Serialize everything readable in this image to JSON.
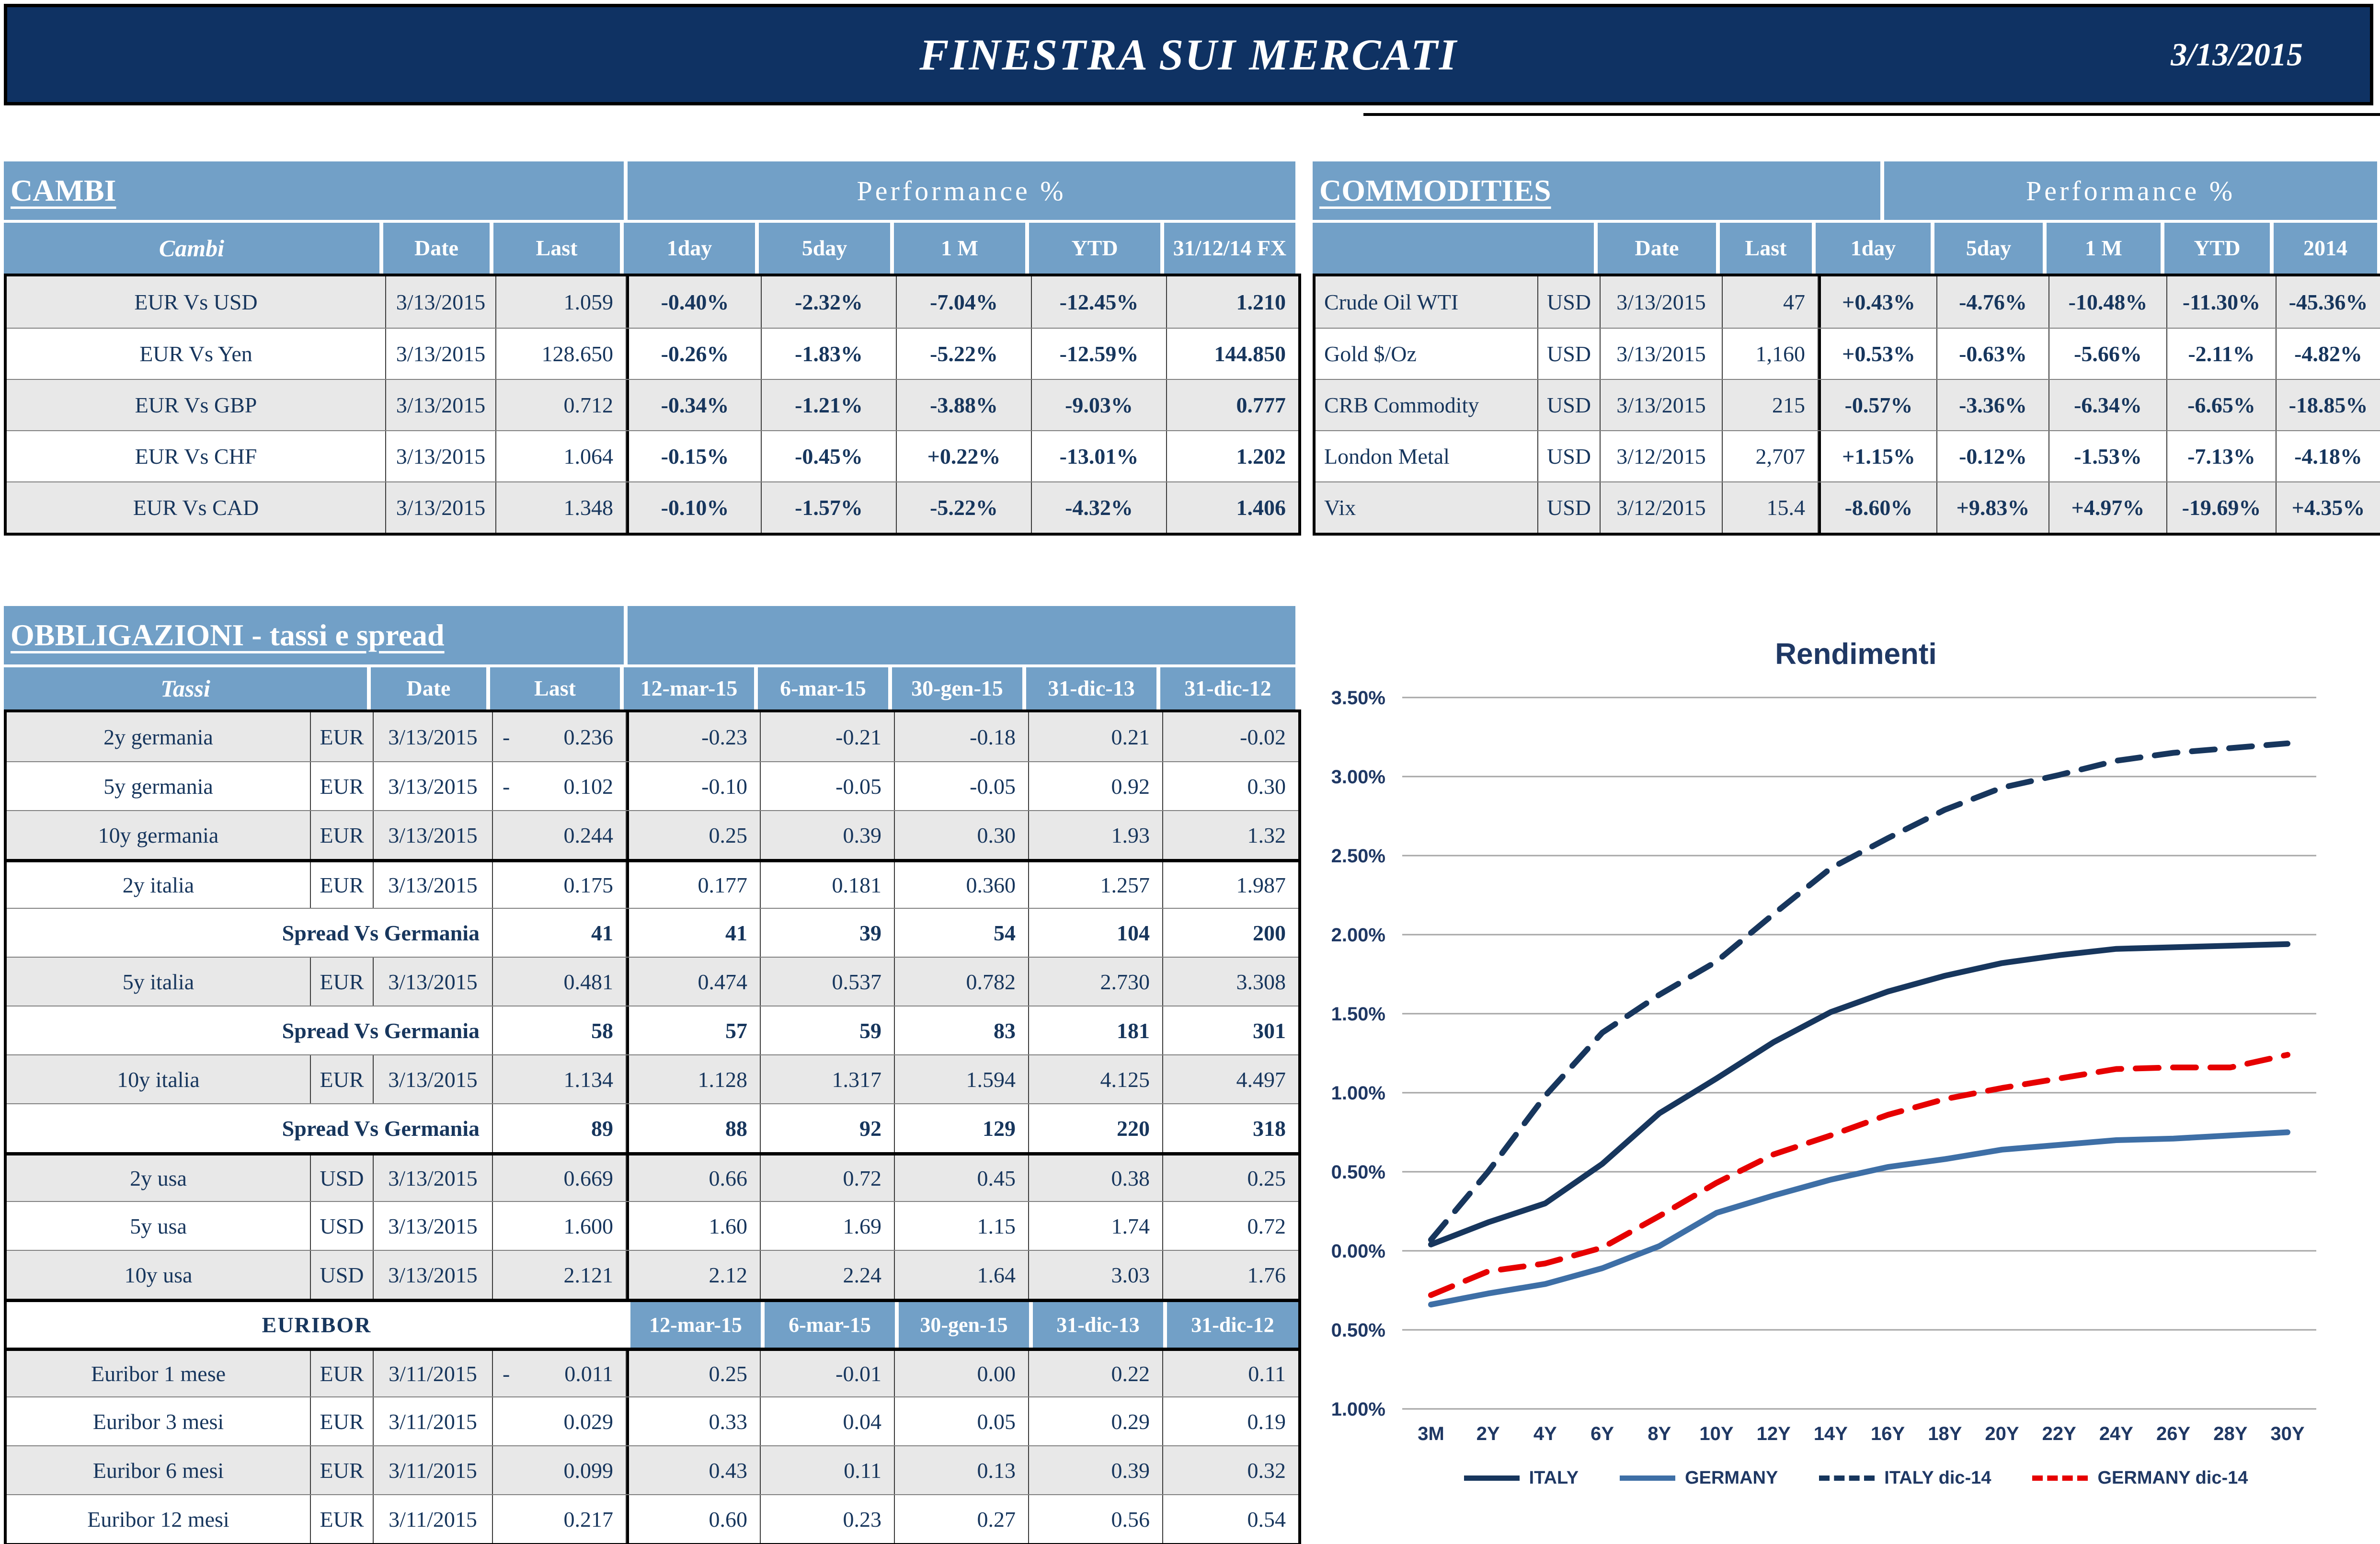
{
  "header": {
    "title": "FINESTRA SUI MERCATI",
    "date": "3/13/2015"
  },
  "cambi": {
    "title": "CAMBI",
    "perf_header": "Performance  %",
    "columns": {
      "name": "Cambi",
      "date": "Date",
      "last": "Last",
      "d1": "1day",
      "d5": "5day",
      "m1": "1 M",
      "ytd": "YTD",
      "fx": "31/12/14 FX"
    },
    "rows": [
      {
        "name": "EUR Vs USD",
        "date": "3/13/2015",
        "last": "1.059",
        "d1": "-0.40%",
        "s1": "neg",
        "d5": "-2.32%",
        "s5": "neg",
        "m1": "-7.04%",
        "sm": "neg",
        "ytd": "-12.45%",
        "sy": "neg",
        "fx": "1.210"
      },
      {
        "name": "EUR Vs Yen",
        "date": "3/13/2015",
        "last": "128.650",
        "d1": "-0.26%",
        "s1": "neg",
        "d5": "-1.83%",
        "s5": "neg",
        "m1": "-5.22%",
        "sm": "neg",
        "ytd": "-12.59%",
        "sy": "neg",
        "fx": "144.850"
      },
      {
        "name": "EUR Vs GBP",
        "date": "3/13/2015",
        "last": "0.712",
        "d1": "-0.34%",
        "s1": "neg",
        "d5": "-1.21%",
        "s5": "neg",
        "m1": "-3.88%",
        "sm": "neg",
        "ytd": "-9.03%",
        "sy": "neg",
        "fx": "0.777"
      },
      {
        "name": "EUR Vs CHF",
        "date": "3/13/2015",
        "last": "1.064",
        "d1": "-0.15%",
        "s1": "neg",
        "d5": "-0.45%",
        "s5": "neg",
        "m1": "+0.22%",
        "sm": "pos",
        "ytd": "-13.01%",
        "sy": "neg",
        "fx": "1.202"
      },
      {
        "name": "EUR Vs CAD",
        "date": "3/13/2015",
        "last": "1.348",
        "d1": "-0.10%",
        "s1": "neg",
        "d5": "-1.57%",
        "s5": "neg",
        "m1": "-5.22%",
        "sm": "neg",
        "ytd": "-4.32%",
        "sy": "neg",
        "fx": "1.406"
      }
    ]
  },
  "commodities": {
    "title": "COMMODITIES",
    "perf_header": "Performance  %",
    "columns": {
      "date": "Date",
      "last": "Last",
      "d1": "1day",
      "d5": "5day",
      "m1": "1 M",
      "ytd": "YTD",
      "y2014": "2014"
    },
    "rows": [
      {
        "name": "Crude Oil WTI",
        "ccy": "USD",
        "date": "3/13/2015",
        "last": "47",
        "d1": "+0.43%",
        "s1": "pos",
        "d5": "-4.76%",
        "s5": "neg",
        "m1": "-10.48%",
        "sm": "neg",
        "ytd": "-11.30%",
        "sy": "neg",
        "y2014": "-45.36%",
        "s14": "neg"
      },
      {
        "name": "Gold $/Oz",
        "ccy": "USD",
        "date": "3/13/2015",
        "last": "1,160",
        "d1": "+0.53%",
        "s1": "pos",
        "d5": "-0.63%",
        "s5": "neg",
        "m1": "-5.66%",
        "sm": "neg",
        "ytd": "-2.11%",
        "sy": "neg",
        "y2014": "-4.82%",
        "s14": "neg"
      },
      {
        "name": "CRB Commodity",
        "ccy": "USD",
        "date": "3/13/2015",
        "last": "215",
        "d1": "-0.57%",
        "s1": "neg",
        "d5": "-3.36%",
        "s5": "neg",
        "m1": "-6.34%",
        "sm": "neg",
        "ytd": "-6.65%",
        "sy": "neg",
        "y2014": "-18.85%",
        "s14": "neg"
      },
      {
        "name": "London Metal",
        "ccy": "USD",
        "date": "3/12/2015",
        "last": "2,707",
        "d1": "+1.15%",
        "s1": "pos",
        "d5": "-0.12%",
        "s5": "neg",
        "m1": "-1.53%",
        "sm": "neg",
        "ytd": "-7.13%",
        "sy": "neg",
        "y2014": "-4.18%",
        "s14": "neg"
      },
      {
        "name": "Vix",
        "ccy": "USD",
        "date": "3/12/2015",
        "last": "15.4",
        "d1": "-8.60%",
        "s1": "neg",
        "d5": "+9.83%",
        "s5": "pos",
        "m1": "+4.97%",
        "sm": "pos",
        "ytd": "-19.69%",
        "sy": "neg",
        "y2014": "+4.35%",
        "s14": "pos"
      }
    ]
  },
  "obblig": {
    "title": "OBBLIGAZIONI - tassi e spread",
    "columns": {
      "name": "Tassi",
      "date": "Date",
      "last": "Last",
      "c1": "12-mar-15",
      "c2": "6-mar-15",
      "c3": "30-gen-15",
      "c4": "31-dic-13",
      "c5": "31-dic-12"
    },
    "section_label": "EURIBOR",
    "rows": [
      {
        "name": "2y germania",
        "ccy": "EUR",
        "date": "3/13/2015",
        "minus": "-",
        "last": "0.236",
        "v1": "-0.23",
        "v2": "-0.21",
        "v3": "-0.18",
        "v4": "0.21",
        "v5": "-0.02"
      },
      {
        "name": "5y germania",
        "ccy": "EUR",
        "date": "3/13/2015",
        "minus": "-",
        "last": "0.102",
        "v1": "-0.10",
        "v2": "-0.05",
        "v3": "-0.05",
        "v4": "0.92",
        "v5": "0.30"
      },
      {
        "name": "10y germania",
        "ccy": "EUR",
        "date": "3/13/2015",
        "minus": "",
        "last": "0.244",
        "v1": "0.25",
        "v2": "0.39",
        "v3": "0.30",
        "v4": "1.93",
        "v5": "1.32"
      },
      {
        "name": "2y italia",
        "ccy": "EUR",
        "date": "3/13/2015",
        "minus": "",
        "last": "0.175",
        "v1": "0.177",
        "v2": "0.181",
        "v3": "0.360",
        "v4": "1.257",
        "v5": "1.987"
      },
      {
        "label": "Spread Vs Germania",
        "last": "41",
        "v1": "41",
        "v2": "39",
        "v3": "54",
        "v4": "104",
        "v5": "200"
      },
      {
        "name": "5y italia",
        "ccy": "EUR",
        "date": "3/13/2015",
        "minus": "",
        "last": "0.481",
        "v1": "0.474",
        "v2": "0.537",
        "v3": "0.782",
        "v4": "2.730",
        "v5": "3.308"
      },
      {
        "label": "Spread Vs Germania",
        "last": "58",
        "v1": "57",
        "v2": "59",
        "v3": "83",
        "v4": "181",
        "v5": "301"
      },
      {
        "name": "10y italia",
        "ccy": "EUR",
        "date": "3/13/2015",
        "minus": "",
        "last": "1.134",
        "v1": "1.128",
        "v2": "1.317",
        "v3": "1.594",
        "v4": "4.125",
        "v5": "4.497"
      },
      {
        "label": "Spread Vs Germania",
        "last": "89",
        "v1": "88",
        "v2": "92",
        "v3": "129",
        "v4": "220",
        "v5": "318"
      },
      {
        "name": "2y usa",
        "ccy": "USD",
        "date": "3/13/2015",
        "minus": "",
        "last": "0.669",
        "v1": "0.66",
        "v2": "0.72",
        "v3": "0.45",
        "v4": "0.38",
        "v5": "0.25"
      },
      {
        "name": "5y usa",
        "ccy": "USD",
        "date": "3/13/2015",
        "minus": "",
        "last": "1.600",
        "v1": "1.60",
        "v2": "1.69",
        "v3": "1.15",
        "v4": "1.74",
        "v5": "0.72"
      },
      {
        "name": "10y usa",
        "ccy": "USD",
        "date": "3/13/2015",
        "minus": "",
        "last": "2.121",
        "v1": "2.12",
        "v2": "2.24",
        "v3": "1.64",
        "v4": "3.03",
        "v5": "1.76"
      },
      {
        "name": "Euribor 1 mese",
        "ccy": "EUR",
        "date": "3/11/2015",
        "minus": "-",
        "last": "0.011",
        "v1": "0.25",
        "v2": "-0.01",
        "v3": "0.00",
        "v4": "0.22",
        "v5": "0.11"
      },
      {
        "name": "Euribor 3 mesi",
        "ccy": "EUR",
        "date": "3/11/2015",
        "minus": "",
        "last": "0.029",
        "v1": "0.33",
        "v2": "0.04",
        "v3": "0.05",
        "v4": "0.29",
        "v5": "0.19"
      },
      {
        "name": "Euribor 6 mesi",
        "ccy": "EUR",
        "date": "3/11/2015",
        "minus": "",
        "last": "0.099",
        "v1": "0.43",
        "v2": "0.11",
        "v3": "0.13",
        "v4": "0.39",
        "v5": "0.32"
      },
      {
        "name": "Euribor 12 mesi",
        "ccy": "EUR",
        "date": "3/11/2015",
        "minus": "",
        "last": "0.217",
        "v1": "0.60",
        "v2": "0.23",
        "v3": "0.27",
        "v4": "0.56",
        "v5": "0.54"
      }
    ]
  },
  "chart_data": {
    "type": "line",
    "title": "Rendimenti",
    "categories": [
      "3M",
      "2Y",
      "4Y",
      "6Y",
      "8Y",
      "10Y",
      "12Y",
      "14Y",
      "16Y",
      "18Y",
      "20Y",
      "22Y",
      "24Y",
      "26Y",
      "28Y",
      "30Y"
    ],
    "xlabel": "",
    "ylabel": "",
    "ylim": [
      -1.0,
      3.5
    ],
    "ytick": 0.5,
    "y_format": "percent",
    "grid": "horizontal",
    "gridline_color": "#A6A6A6",
    "legend_position": "bottom",
    "series": [
      {
        "name": "ITALY",
        "style": "solid",
        "color": "#17365D",
        "values": [
          0.04,
          0.18,
          0.3,
          0.55,
          0.87,
          1.09,
          1.32,
          1.51,
          1.64,
          1.74,
          1.82,
          1.87,
          1.91,
          1.92,
          1.93,
          1.94
        ]
      },
      {
        "name": "GERMANY",
        "style": "solid",
        "color": "#3E6FA6",
        "values": [
          -0.34,
          -0.27,
          -0.21,
          -0.11,
          0.03,
          0.24,
          0.35,
          0.45,
          0.53,
          0.58,
          0.64,
          0.67,
          0.7,
          0.71,
          0.73,
          0.75
        ]
      },
      {
        "name": "ITALY dic-14",
        "style": "dashed",
        "color": "#17365D",
        "values": [
          0.07,
          0.5,
          0.98,
          1.38,
          1.62,
          1.83,
          2.13,
          2.42,
          2.61,
          2.79,
          2.93,
          3.01,
          3.1,
          3.15,
          3.18,
          3.21
        ]
      },
      {
        "name": "GERMANY dic-14",
        "style": "dashed",
        "color": "#E60000",
        "values": [
          -0.28,
          -0.13,
          -0.08,
          0.02,
          0.22,
          0.43,
          0.61,
          0.73,
          0.86,
          0.96,
          1.03,
          1.09,
          1.15,
          1.16,
          1.16,
          1.24
        ]
      }
    ],
    "colors": {
      "banner_navy": "#0F3263",
      "header_blue": "#72A0C7",
      "text_navy": "#17365D",
      "negative_red": "#FF0000",
      "positive_green": "#00A651",
      "alt_row_gray": "#E8E8E8"
    }
  }
}
